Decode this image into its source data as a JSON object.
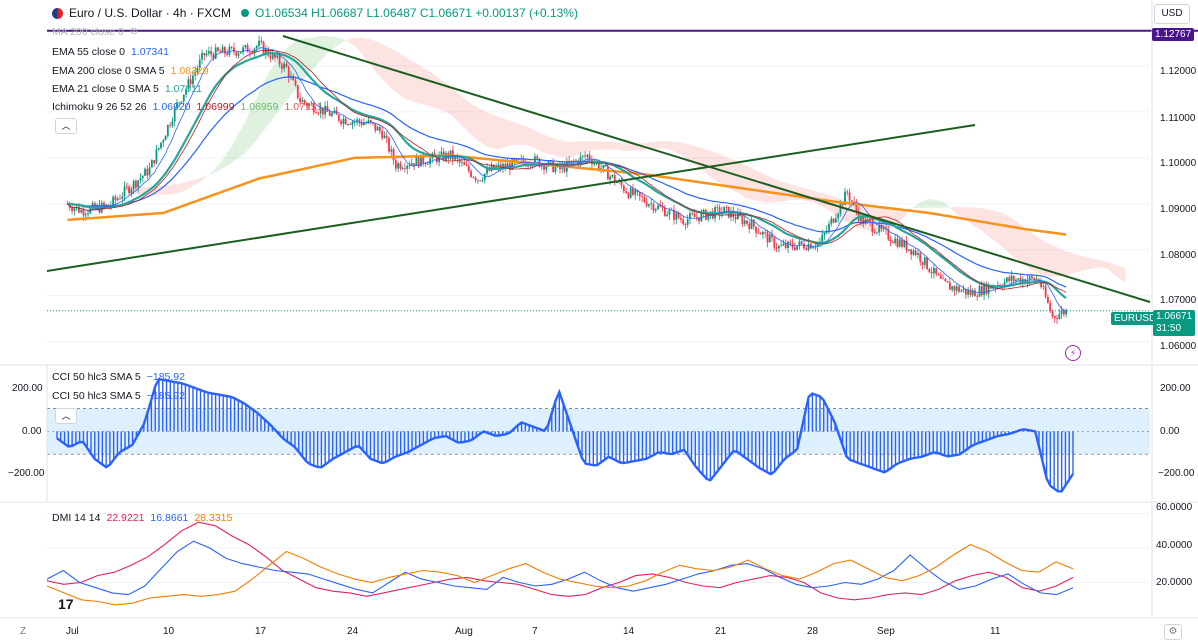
{
  "header": {
    "symbol": "Euro / U.S. Dollar · 4h · FXCM",
    "ohlc": "O1.06534 H1.06687 L1.06487 C1.06671 +0.00137 (+0.13%)",
    "currency": "USD"
  },
  "indicators": {
    "ma200": {
      "label": "MA 200 close 0"
    },
    "ema55": {
      "label": "EMA 55 close 0",
      "value": "1.07341"
    },
    "ema200": {
      "label": "EMA 200 close 0 SMA 5",
      "value": "1.08329"
    },
    "ema21": {
      "label": "EMA 21 close 0 SMA 5",
      "value": "1.07011"
    },
    "ichimoku": {
      "label": "Ichimoku 9 26 52 26",
      "v1": "1.06920",
      "v2": "1.06999",
      "v3": "1.06959",
      "v4": "1.07151"
    },
    "cci1": {
      "label": "CCI 50 hlc3 SMA 5",
      "value": "−185.92"
    },
    "cci2": {
      "label": "CCI 50 hlc3 SMA 5",
      "value": "−185.92"
    },
    "dmi": {
      "label": "DMI 14 14",
      "v1": "22.9221",
      "v2": "16.8661",
      "v3": "28.3315"
    }
  },
  "price_axis": {
    "ticks": [
      "1.12000",
      "1.11000",
      "1.10000",
      "1.09000",
      "1.08000",
      "1.07000",
      "1.06000"
    ],
    "hline_label": "1.12767",
    "last_symbol": "EURUSD",
    "last_price": "1.06671",
    "countdown": "31:50"
  },
  "cci_axis": {
    "ticks": [
      "200.00",
      "0.00",
      "−200.00"
    ],
    "right_ticks": [
      "200.00",
      "0.00",
      "−200.00"
    ]
  },
  "dmi_axis": {
    "ticks": [
      "60.0000",
      "40.0000",
      "20.0000"
    ]
  },
  "time_axis": {
    "labels": [
      "Jul",
      "10",
      "17",
      "24",
      "Aug",
      "7",
      "14",
      "21",
      "28",
      "Sep",
      "11"
    ]
  },
  "colors": {
    "up": "#089981",
    "down": "#f23645",
    "ema55": "#2962ff",
    "ema200": "#f7931a",
    "ema21": "#26a69a",
    "ichi_tenkan": "#2962ff",
    "ichi_kijun": "#b71c1c",
    "trendline": "#1b5e20",
    "hline": "#4a148c",
    "cci": "#2962ff",
    "dmi_plus": "#e91e63",
    "dmi_minus": "#2962ff",
    "adx": "#f57c00"
  },
  "chart_data": [
    {
      "type": "candlestick",
      "title": "Euro / U.S. Dollar · 4h · FXCM",
      "x_labels": [
        "Jul",
        "10",
        "17",
        "24",
        "Aug",
        "7",
        "14",
        "21",
        "28",
        "Sep",
        "11"
      ],
      "ylim": [
        1.056,
        1.13
      ],
      "close_path": [
        {
          "x": "Jul 3",
          "y": 1.0915
        },
        {
          "x": "Jul 5",
          "y": 1.0885
        },
        {
          "x": "Jul 7",
          "y": 1.0895
        },
        {
          "x": "Jul 10",
          "y": 1.0975
        },
        {
          "x": "Jul 12",
          "y": 1.1115
        },
        {
          "x": "Jul 14",
          "y": 1.1225
        },
        {
          "x": "Jul 17",
          "y": 1.1235
        },
        {
          "x": "Jul 18",
          "y": 1.1245
        },
        {
          "x": "Jul 20",
          "y": 1.1195
        },
        {
          "x": "Jul 21",
          "y": 1.1125
        },
        {
          "x": "Jul 24",
          "y": 1.1085
        },
        {
          "x": "Jul 26",
          "y": 1.1075
        },
        {
          "x": "Jul 27",
          "y": 1.1055
        },
        {
          "x": "Jul 28",
          "y": 1.0985
        },
        {
          "x": "Aug 1",
          "y": 1.1005
        },
        {
          "x": "Aug 3",
          "y": 1.0955
        },
        {
          "x": "Aug 4",
          "y": 1.0975
        },
        {
          "x": "Aug 7",
          "y": 1.0995
        },
        {
          "x": "Aug 9",
          "y": 1.0975
        },
        {
          "x": "Aug 11",
          "y": 1.1005
        },
        {
          "x": "Aug 14",
          "y": 1.0925
        },
        {
          "x": "Aug 16",
          "y": 1.0895
        },
        {
          "x": "Aug 18",
          "y": 1.0865
        },
        {
          "x": "Aug 21",
          "y": 1.0885
        },
        {
          "x": "Aug 23",
          "y": 1.0855
        },
        {
          "x": "Aug 25",
          "y": 1.0805
        },
        {
          "x": "Aug 28",
          "y": 1.0815
        },
        {
          "x": "Aug 30",
          "y": 1.0925
        },
        {
          "x": "Aug 31",
          "y": 1.0865
        },
        {
          "x": "Sep 4",
          "y": 1.0795
        },
        {
          "x": "Sep 6",
          "y": 1.0725
        },
        {
          "x": "Sep 8",
          "y": 1.0705
        },
        {
          "x": "Sep 11",
          "y": 1.0735
        },
        {
          "x": "Sep 13",
          "y": 1.0735
        },
        {
          "x": "Sep 14",
          "y": 1.0655
        },
        {
          "x": "Sep 15",
          "y": 1.0667
        }
      ],
      "horizontal_line": 1.12767,
      "last_price": 1.06671
    },
    {
      "type": "line",
      "title": "CCI 50 hlc3 SMA 5",
      "ylim": [
        -300,
        260
      ],
      "bands": [
        100,
        -100
      ],
      "values": [
        -30,
        -70,
        -40,
        -120,
        -160,
        -90,
        -60,
        40,
        230,
        220,
        210,
        190,
        170,
        160,
        150,
        120,
        80,
        30,
        -30,
        -70,
        -140,
        -160,
        -120,
        -90,
        -60,
        -120,
        -140,
        -110,
        -90,
        -60,
        -30,
        -20,
        -50,
        -40,
        0,
        -20,
        -10,
        40,
        20,
        0,
        180,
        20,
        -140,
        -150,
        -110,
        -140,
        -130,
        -120,
        -90,
        -100,
        -80,
        -160,
        -220,
        -150,
        -80,
        -120,
        -160,
        -190,
        -120,
        -80,
        170,
        150,
        40,
        -120,
        -140,
        -160,
        -180,
        -140,
        -120,
        -110,
        -90,
        -110,
        -100,
        -60,
        -40,
        -20,
        -10,
        10,
        0,
        -230,
        -270,
        -186
      ]
    },
    {
      "type": "line",
      "title": "DMI 14 14",
      "ylim": [
        0,
        65
      ],
      "series": [
        {
          "name": "22.9221",
          "values": [
            21,
            19,
            20,
            24,
            26,
            30,
            35,
            42,
            50,
            55,
            53,
            47,
            42,
            35,
            27,
            22,
            17,
            15,
            14,
            12,
            14,
            16,
            18,
            20,
            22,
            23,
            21,
            20,
            19,
            16,
            13,
            12,
            13,
            17,
            20,
            24,
            25,
            23,
            20,
            18,
            17,
            20,
            22,
            24,
            23,
            20,
            14,
            11,
            10,
            11,
            13,
            14,
            13,
            16,
            21,
            24,
            26,
            23,
            17,
            15,
            18,
            23
          ]
        },
        {
          "name": "16.8661",
          "values": [
            22,
            27,
            20,
            17,
            14,
            13,
            18,
            28,
            38,
            44,
            40,
            34,
            31,
            29,
            27,
            26,
            25,
            22,
            19,
            16,
            14,
            20,
            26,
            22,
            20,
            18,
            17,
            16,
            23,
            20,
            18,
            19,
            22,
            26,
            21,
            17,
            15,
            17,
            19,
            22,
            25,
            27,
            30,
            31,
            28,
            23,
            19,
            17,
            18,
            20,
            19,
            22,
            27,
            36,
            28,
            21,
            16,
            18,
            22,
            25,
            19,
            14,
            13,
            17
          ]
        },
        {
          "name": "28.3315",
          "values": [
            18,
            14,
            10,
            9,
            7,
            8,
            11,
            12,
            13,
            12,
            13,
            15,
            22,
            30,
            38,
            34,
            29,
            25,
            22,
            20,
            23,
            25,
            27,
            26,
            24,
            20,
            24,
            28,
            31,
            26,
            22,
            20,
            18,
            17,
            18,
            21,
            26,
            30,
            28,
            27,
            29,
            33,
            28,
            24,
            22,
            26,
            31,
            33,
            28,
            23,
            21,
            24,
            29,
            36,
            42,
            38,
            32,
            27,
            26,
            32,
            28
          ]
        }
      ]
    }
  ]
}
